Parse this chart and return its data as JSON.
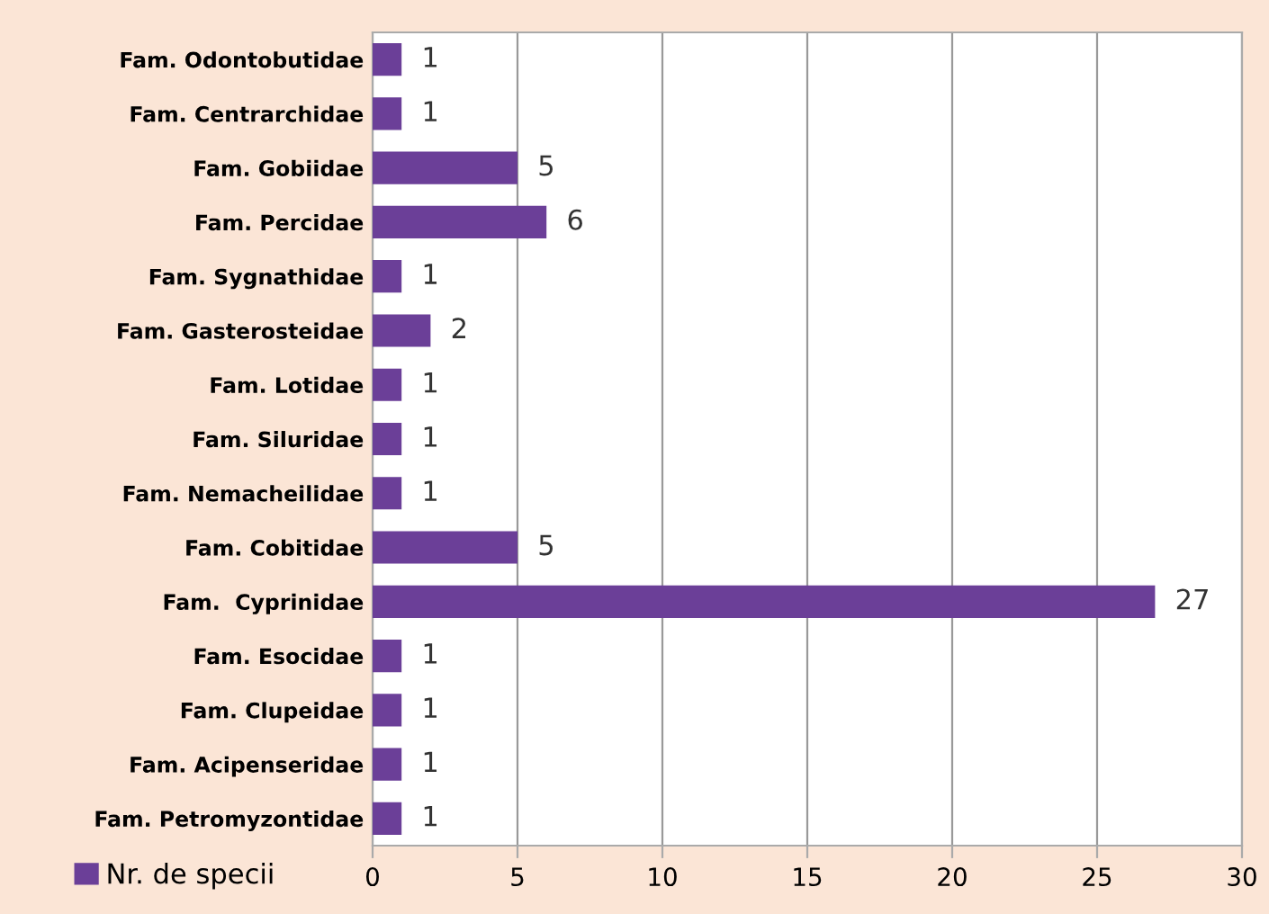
{
  "chart_data": {
    "type": "bar",
    "orientation": "horizontal",
    "categories": [
      "Fam. Odontobutidae",
      "Fam. Centrarchidae",
      "Fam. Gobiidae",
      "Fam. Percidae",
      "Fam. Sygnathidae",
      "Fam. Gasterosteidae",
      "Fam. Lotidae",
      "Fam. Siluridae",
      "Fam. Nemacheilidae",
      "Fam. Cobitidae",
      "Fam.  Cyprinidae",
      "Fam. Esocidae",
      "Fam. Clupeidae",
      "Fam. Acipenseridae",
      "Fam. Petromyzontidae"
    ],
    "series": [
      {
        "name": "Nr. de specii",
        "color": "#6b3f98",
        "values": [
          1,
          1,
          5,
          6,
          1,
          2,
          1,
          1,
          1,
          5,
          27,
          1,
          1,
          1,
          1
        ]
      }
    ],
    "xlim": [
      0,
      30
    ],
    "xticks": [
      0,
      5,
      10,
      15,
      20,
      25,
      30
    ],
    "grid": "x",
    "legend": "bottom left",
    "data_labels": true
  }
}
